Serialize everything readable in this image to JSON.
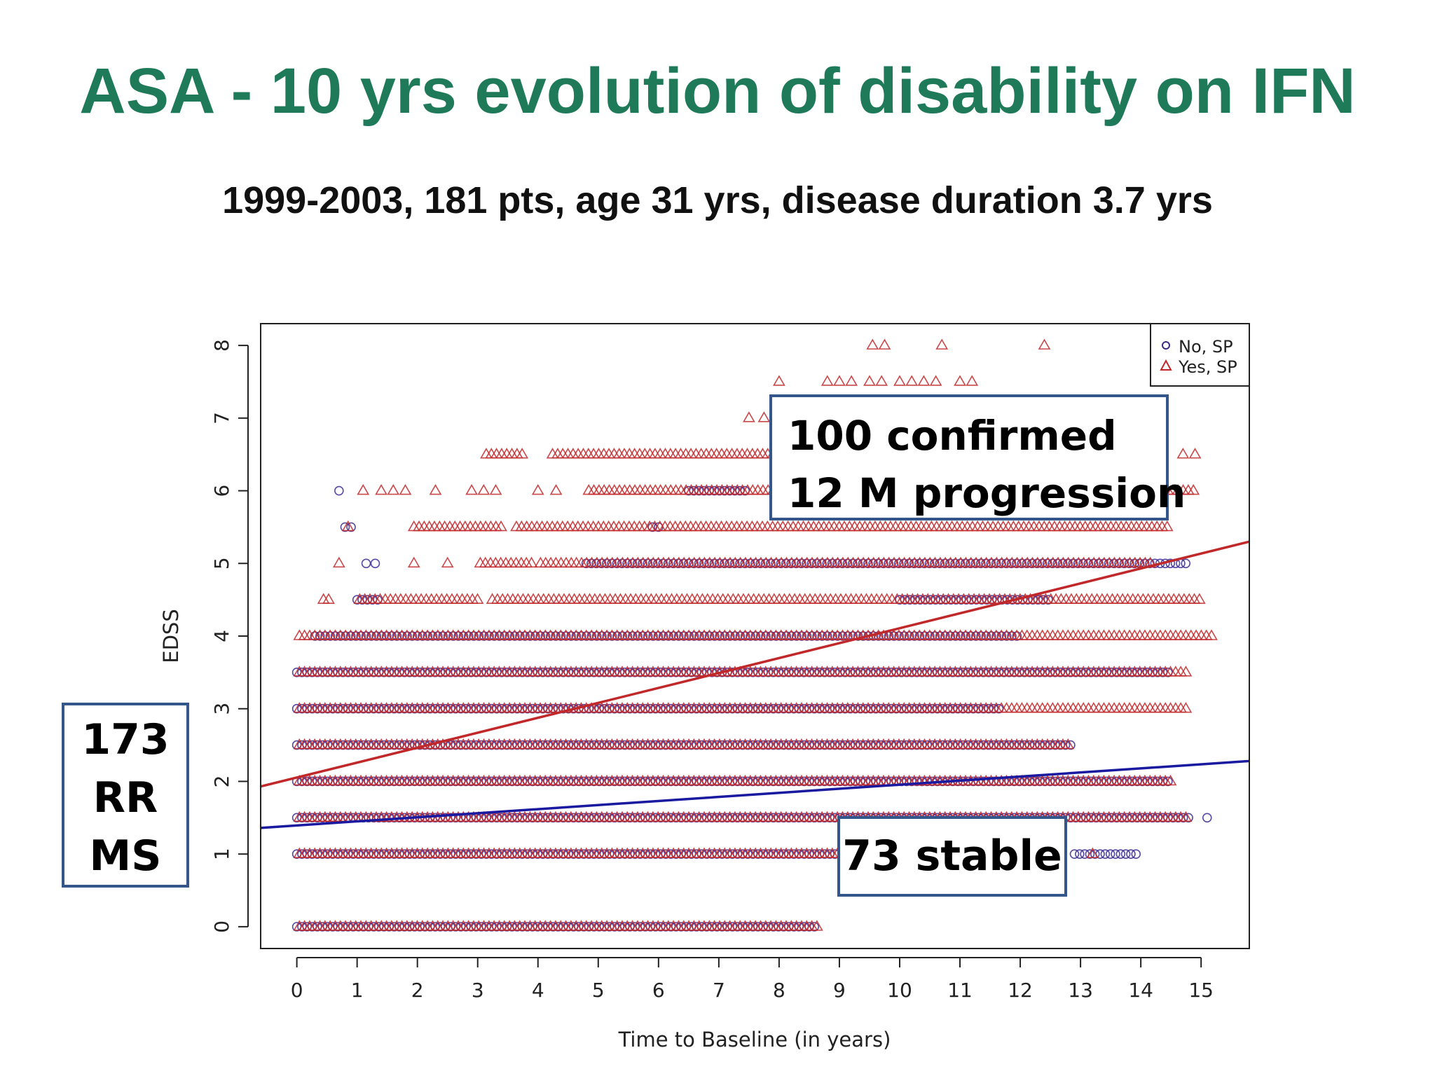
{
  "slide": {
    "title": "ASA - 10 yrs evolution of disability on IFN",
    "subtitle": "1999-2003, 181 pts, age 31 yrs, disease duration 3.7 yrs"
  },
  "colors": {
    "title": "#1f7a5a",
    "no_sp": "#3a2a90",
    "yes_sp": "#c0282a",
    "callout_border": "#34568a"
  },
  "chart_data": {
    "type": "scatter",
    "xlabel": "Time to Baseline (in years)",
    "ylabel": "EDSS",
    "xlim": [
      -0.6,
      15.8
    ],
    "ylim": [
      -0.3,
      8.3
    ],
    "x_ticks": [
      "0",
      "1",
      "2",
      "3",
      "4",
      "5",
      "6",
      "7",
      "8",
      "9",
      "10",
      "11",
      "12",
      "13",
      "14",
      "15"
    ],
    "y_ticks": [
      "0",
      "1",
      "2",
      "3",
      "4",
      "5",
      "6",
      "7",
      "8"
    ],
    "grid": false,
    "legend_position": "top-right",
    "series": [
      {
        "name": "No, SP",
        "marker": "circle",
        "color": "#3a2a90",
        "rows": [
          {
            "y": 0,
            "ranges": [
              [
                0,
                8.6
              ]
            ]
          },
          {
            "y": 1,
            "ranges": [
              [
                0,
                9.0
              ],
              [
                12.9,
                14.0
              ]
            ]
          },
          {
            "y": 1.5,
            "ranges": [
              [
                0,
                14.8
              ]
            ],
            "extra": [
              15.1
            ]
          },
          {
            "y": 2,
            "ranges": [
              [
                0,
                14.5
              ]
            ]
          },
          {
            "y": 2.5,
            "ranges": [
              [
                0,
                12.9
              ]
            ]
          },
          {
            "y": 3,
            "ranges": [
              [
                0,
                11.7
              ]
            ]
          },
          {
            "y": 3.5,
            "ranges": [
              [
                0,
                14.5
              ]
            ]
          },
          {
            "y": 4,
            "ranges": [
              [
                0.3,
                12.0
              ]
            ]
          },
          {
            "y": 4.5,
            "ranges": [
              [
                1.0,
                1.4
              ],
              [
                10.0,
                12.5
              ]
            ]
          },
          {
            "y": 5,
            "ranges": [
              [
                4.8,
                14.8
              ]
            ],
            "extra": [
              1.15,
              1.3
            ]
          },
          {
            "y": 5.5,
            "ranges": [],
            "extra": [
              0.8,
              0.9,
              5.9,
              6.0
            ]
          },
          {
            "y": 6,
            "ranges": [
              [
                6.5,
                7.5
              ]
            ],
            "extra": [
              0.7
            ]
          }
        ]
      },
      {
        "name": "Yes, SP",
        "marker": "triangle",
        "color": "#c0282a",
        "rows": [
          {
            "y": 0,
            "ranges": [
              [
                0,
                8.7
              ]
            ]
          },
          {
            "y": 1,
            "ranges": [
              [
                0,
                9.0
              ]
            ],
            "extra": [
              13.2
            ]
          },
          {
            "y": 1.5,
            "ranges": [
              [
                0,
                14.8
              ]
            ]
          },
          {
            "y": 2,
            "ranges": [
              [
                0,
                14.5
              ]
            ]
          },
          {
            "y": 2.5,
            "ranges": [
              [
                0,
                12.8
              ]
            ]
          },
          {
            "y": 3,
            "ranges": [
              [
                0,
                14.8
              ]
            ]
          },
          {
            "y": 3.5,
            "ranges": [
              [
                0,
                14.8
              ]
            ]
          },
          {
            "y": 4,
            "ranges": [
              [
                0,
                15.2
              ]
            ]
          },
          {
            "y": 4.5,
            "ranges": [
              [
                0.4,
                0.6
              ],
              [
                1.0,
                3.0
              ],
              [
                3.2,
                15.0
              ]
            ]
          },
          {
            "y": 5,
            "ranges": [
              [
                1.9,
                2.0
              ],
              [
                3.0,
                3.9
              ],
              [
                4.0,
                14.2
              ]
            ],
            "extra": [
              0.7,
              2.5
            ]
          },
          {
            "y": 5.5,
            "ranges": [
              [
                1.9,
                3.4
              ],
              [
                3.6,
                14.5
              ]
            ],
            "extra": [
              0.85
            ]
          },
          {
            "y": 6,
            "ranges": [
              [
                4.8,
                14.9
              ]
            ],
            "extra": [
              1.1,
              1.4,
              1.6,
              1.8,
              2.3,
              2.9,
              3.1,
              3.3,
              4.0,
              4.3
            ]
          },
          {
            "y": 6.5,
            "ranges": [
              [
                3.1,
                3.8
              ],
              [
                4.2,
                8.0
              ]
            ],
            "extra": [
              14.7,
              14.9
            ]
          },
          {
            "y": 7,
            "ranges": [],
            "extra": [
              7.5,
              7.75
            ]
          },
          {
            "y": 7.5,
            "ranges": [],
            "extra": [
              8.0,
              8.8,
              9.0,
              9.2,
              9.5,
              9.7,
              10.0,
              10.2,
              10.4,
              10.6,
              11.0,
              11.2
            ]
          },
          {
            "y": 8,
            "ranges": [],
            "extra": [
              9.55,
              9.75,
              10.7,
              12.4
            ]
          }
        ]
      }
    ],
    "trend_lines": [
      {
        "series": "Yes, SP",
        "color": "#c0282a",
        "x": [
          -0.6,
          15.8
        ],
        "y": [
          1.93,
          5.3
        ]
      },
      {
        "series": "No, SP",
        "color": "#1a1aa0",
        "x": [
          -0.6,
          15.8
        ],
        "y": [
          1.36,
          2.28
        ]
      }
    ]
  },
  "annotations": {
    "progression": [
      "100 confirmed",
      "12 M progression"
    ],
    "rrms": [
      "173",
      "RR",
      "MS"
    ],
    "stable": "73 stable"
  }
}
